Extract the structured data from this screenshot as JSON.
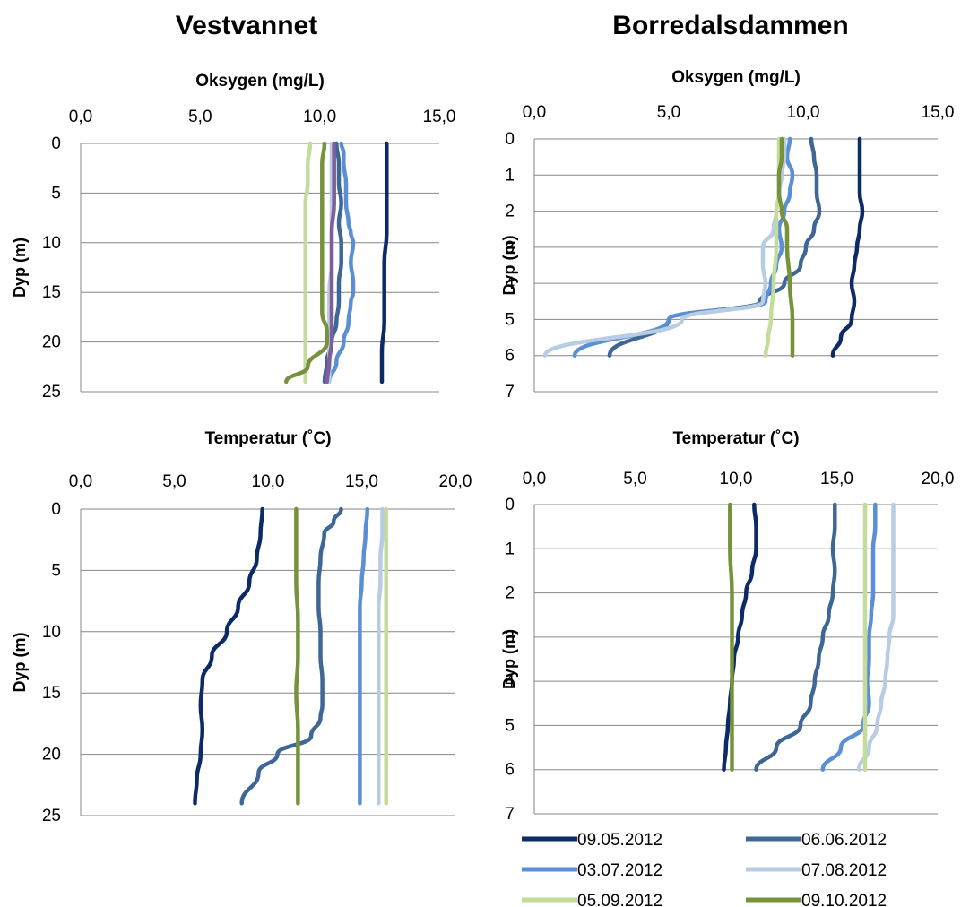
{
  "lakes": [
    {
      "name": "Vestvannet"
    },
    {
      "name": "Borredalsdammen"
    }
  ],
  "series_colors": {
    "09.05.2012": "#0b2a66",
    "06.06.2012": "#3e6796",
    "03.07.2012": "#5a8fd6",
    "07.08.2012": "#b8cce4",
    "05.09.2012": "#c3dc9a",
    "09.10.2012": "#76933c"
  },
  "legend": [
    "09.05.2012",
    "06.06.2012",
    "03.07.2012",
    "07.08.2012",
    "05.09.2012",
    "09.10.2012"
  ],
  "chart_data": [
    {
      "id": "v-oxy",
      "type": "line",
      "orientation": "depth-profile",
      "title": "Oksygen (mg/L)",
      "ylabel": "Dyp (m)",
      "xlim": [
        0,
        15
      ],
      "xticks": [
        "0,0",
        "5,0",
        "10,0",
        "15,0"
      ],
      "ylim": [
        0,
        25
      ],
      "yticks": [
        "0",
        "5",
        "10",
        "15",
        "20",
        "25"
      ],
      "series": [
        {
          "name": "09.05.2012",
          "x": [
            12.8,
            12.8,
            12.8,
            12.8,
            12.7,
            12.7,
            12.7,
            12.6,
            12.6
          ],
          "y": [
            0,
            3,
            6,
            9,
            12,
            15,
            18,
            21,
            24
          ]
        },
        {
          "name": "06.06.2012",
          "x": [
            10.7,
            10.8,
            10.8,
            10.9,
            10.8,
            10.9,
            10.9,
            10.8,
            10.8,
            10.7,
            10.5,
            10.3,
            10.2
          ],
          "y": [
            0,
            2,
            4,
            6,
            8,
            10,
            12,
            14,
            16,
            18,
            20,
            22,
            24
          ]
        },
        {
          "name": "03.07.2012",
          "x": [
            10.9,
            11.0,
            11.0,
            11.1,
            11.1,
            11.2,
            11.3,
            11.4,
            11.3,
            11.4,
            11.4,
            11.3,
            11.2,
            11.0,
            10.7,
            10.4
          ],
          "y": [
            0,
            1,
            2,
            4,
            6,
            8,
            9,
            10,
            12,
            14,
            15,
            16,
            18,
            20,
            22,
            24
          ]
        },
        {
          "name": "07.08.2012",
          "x": [
            10.5,
            10.5,
            10.5,
            10.5,
            10.5,
            10.4,
            10.4,
            10.4,
            10.4
          ],
          "y": [
            0,
            3,
            6,
            9,
            12,
            15,
            18,
            21,
            24
          ]
        },
        {
          "name": "05.09.2012",
          "x": [
            9.6,
            9.5,
            9.5,
            9.4,
            9.4,
            9.4,
            9.4,
            9.4,
            9.4,
            9.4
          ],
          "y": [
            0,
            2,
            4,
            6,
            8,
            10,
            14,
            18,
            21,
            24
          ]
        },
        {
          "name": "09.10.2012",
          "x": [
            10.2,
            10.1,
            10.1,
            10.1,
            10.1,
            10.1,
            10.1,
            10.3,
            10.3,
            9.5,
            8.6
          ],
          "y": [
            0,
            2,
            5,
            8,
            11,
            14,
            17,
            19,
            20,
            22.5,
            24
          ]
        },
        {
          "name": "",
          "color": "#7e5e9c",
          "x": [
            10.6,
            10.6,
            10.6,
            10.5,
            10.5,
            10.5,
            10.5,
            10.5,
            10.4,
            10.3
          ],
          "y": [
            0,
            3,
            6,
            9,
            12,
            15,
            18,
            20,
            22,
            24
          ]
        }
      ]
    },
    {
      "id": "b-oxy",
      "type": "line",
      "orientation": "depth-profile",
      "title": "Oksygen (mg/L)",
      "ylabel": "Dyp (m)",
      "xlim": [
        0,
        15
      ],
      "xticks": [
        "0,0",
        "5,0",
        "10,0",
        "15,0"
      ],
      "ylim": [
        0,
        7
      ],
      "yticks": [
        "0",
        "1",
        "2",
        "3",
        "4",
        "5",
        "6",
        "7"
      ],
      "series": [
        {
          "name": "09.05.2012",
          "x": [
            12.1,
            12.1,
            12.1,
            12.1,
            12.2,
            12.1,
            12.0,
            11.9,
            11.8,
            11.9,
            11.8,
            11.4,
            11.1
          ],
          "y": [
            0,
            0.5,
            1,
            1.5,
            2,
            2.5,
            3,
            3.5,
            4,
            4.5,
            5,
            5.5,
            6
          ]
        },
        {
          "name": "06.06.2012",
          "x": [
            10.3,
            10.4,
            10.5,
            10.5,
            10.6,
            10.4,
            10.1,
            9.9,
            9.3,
            8.4,
            5.0,
            2.8
          ],
          "y": [
            0,
            0.5,
            1,
            1.5,
            2,
            2.5,
            3,
            3.5,
            4,
            4.5,
            5,
            6
          ]
        },
        {
          "name": "03.07.2012",
          "x": [
            9.5,
            9.4,
            9.6,
            9.5,
            9.3,
            9.1,
            9.2,
            9.0,
            8.8,
            8.6,
            5.0,
            1.5
          ],
          "y": [
            0,
            0.5,
            1,
            1.5,
            2,
            2.5,
            3,
            3.5,
            4,
            4.5,
            5,
            6
          ]
        },
        {
          "name": "07.08.2012",
          "x": [
            9.3,
            9.3,
            9.2,
            9.1,
            9.0,
            8.9,
            8.5,
            8.5,
            8.6,
            8.5,
            5.5,
            0.4
          ],
          "y": [
            0,
            0.5,
            1,
            1.5,
            2,
            2.5,
            3,
            3.5,
            4,
            4.5,
            5,
            6
          ]
        },
        {
          "name": "05.09.2012",
          "x": [
            9.1,
            9.1,
            9.1,
            9.1,
            9.0,
            9.0,
            8.9,
            8.8,
            8.7,
            8.6
          ],
          "y": [
            0,
            0.5,
            1,
            1.5,
            2,
            3,
            4,
            5,
            5.5,
            6
          ]
        },
        {
          "name": "09.10.2012",
          "x": [
            9.2,
            9.2,
            9.1,
            9.1,
            9.2,
            9.4,
            9.4,
            9.5,
            9.6,
            9.6,
            9.6
          ],
          "y": [
            0,
            0.5,
            1,
            1.5,
            2,
            2.5,
            3,
            4,
            5,
            5.5,
            6
          ]
        }
      ]
    },
    {
      "id": "v-temp",
      "type": "line",
      "orientation": "depth-profile",
      "title": "Temperatur (˚C)",
      "ylabel": "Dyp (m)",
      "xlim": [
        0,
        20
      ],
      "xticks": [
        "0,0",
        "5,0",
        "10,0",
        "15,0",
        "20,0"
      ],
      "ylim": [
        0,
        25
      ],
      "yticks": [
        "0",
        "5",
        "10",
        "15",
        "20",
        "25"
      ],
      "series": [
        {
          "name": "09.05.2012",
          "x": [
            9.7,
            9.6,
            9.4,
            9.0,
            8.4,
            7.8,
            7.0,
            6.5,
            6.4,
            6.5,
            6.4,
            6.2,
            6.1
          ],
          "y": [
            0,
            2,
            4,
            6,
            8,
            10,
            12,
            14,
            16,
            18,
            20,
            22,
            24
          ]
        },
        {
          "name": "06.06.2012",
          "x": [
            13.9,
            13.5,
            13.0,
            12.8,
            12.7,
            12.7,
            12.8,
            12.8,
            12.9,
            12.9,
            12.8,
            12.3,
            10.5,
            9.5,
            8.6
          ],
          "y": [
            0,
            1,
            2,
            4,
            6,
            8,
            10,
            12,
            14,
            16,
            17,
            18.5,
            20,
            21.5,
            24
          ]
        },
        {
          "name": "03.07.2012",
          "x": [
            15.3,
            15.2,
            15.1,
            15.0,
            14.9,
            14.9,
            14.9,
            14.9,
            14.9
          ],
          "y": [
            0,
            2,
            4,
            6,
            8,
            12,
            16,
            20,
            24
          ]
        },
        {
          "name": "07.08.2012",
          "x": [
            16.1,
            16.1,
            16.0,
            16.0,
            15.9,
            15.9,
            15.9,
            15.9,
            15.9
          ],
          "y": [
            0,
            2,
            4,
            6,
            8,
            12,
            16,
            20,
            24
          ]
        },
        {
          "name": "05.09.2012",
          "x": [
            16.3,
            16.3,
            16.3,
            16.3,
            16.3,
            16.3,
            16.3
          ],
          "y": [
            0,
            4,
            8,
            12,
            16,
            20,
            24
          ]
        },
        {
          "name": "09.10.2012",
          "x": [
            11.5,
            11.5,
            11.5,
            11.6,
            11.6,
            11.5,
            11.6,
            11.6,
            11.6
          ],
          "y": [
            0,
            3,
            6,
            9,
            12,
            15,
            18,
            21,
            24
          ]
        }
      ]
    },
    {
      "id": "b-temp",
      "type": "line",
      "orientation": "depth-profile",
      "title": "Temperatur (˚C)",
      "ylabel": "Dyp (m)",
      "xlim": [
        0,
        20
      ],
      "xticks": [
        "0,0",
        "5,0",
        "10,0",
        "15,0",
        "20,0"
      ],
      "ylim": [
        0,
        7
      ],
      "yticks": [
        "0",
        "1",
        "2",
        "3",
        "4",
        "5",
        "6",
        "7"
      ],
      "series": [
        {
          "name": "09.05.2012",
          "x": [
            10.9,
            11.0,
            11.0,
            10.8,
            10.5,
            10.3,
            10.1,
            9.9,
            9.8,
            9.7,
            9.6,
            9.5,
            9.4
          ],
          "y": [
            0,
            0.5,
            1,
            1.5,
            2,
            2.5,
            3,
            3.5,
            4,
            4.5,
            5,
            5.5,
            6
          ]
        },
        {
          "name": "06.06.2012",
          "x": [
            14.9,
            14.9,
            14.8,
            14.9,
            14.8,
            14.6,
            14.3,
            14.1,
            13.9,
            13.7,
            13.2,
            12.0,
            11.0
          ],
          "y": [
            0,
            0.5,
            1,
            1.5,
            2,
            2.5,
            3,
            3.5,
            4,
            4.5,
            5,
            5.5,
            6
          ]
        },
        {
          "name": "03.07.2012",
          "x": [
            16.9,
            16.9,
            16.8,
            16.8,
            16.8,
            16.7,
            16.6,
            16.6,
            16.5,
            16.6,
            16.3,
            15.2,
            14.3
          ],
          "y": [
            0,
            0.5,
            1,
            1.5,
            2,
            2.5,
            3,
            3.5,
            4,
            4.5,
            5,
            5.5,
            6
          ]
        },
        {
          "name": "07.08.2012",
          "x": [
            17.8,
            17.8,
            17.8,
            17.8,
            17.8,
            17.8,
            17.6,
            17.5,
            17.4,
            17.2,
            17.0,
            16.6,
            16.1
          ],
          "y": [
            0,
            0.5,
            1,
            1.5,
            2,
            2.5,
            3,
            3.5,
            4,
            4.5,
            5,
            5.5,
            6
          ]
        },
        {
          "name": "05.09.2012",
          "x": [
            16.4,
            16.4,
            16.4,
            16.4,
            16.4,
            16.4,
            16.4
          ],
          "y": [
            0,
            1,
            2,
            3,
            4,
            5,
            6
          ]
        },
        {
          "name": "09.10.2012",
          "x": [
            9.7,
            9.7,
            9.8,
            9.8,
            9.8,
            9.8,
            9.8
          ],
          "y": [
            0,
            1,
            2,
            3,
            4,
            5,
            6
          ]
        }
      ]
    }
  ]
}
